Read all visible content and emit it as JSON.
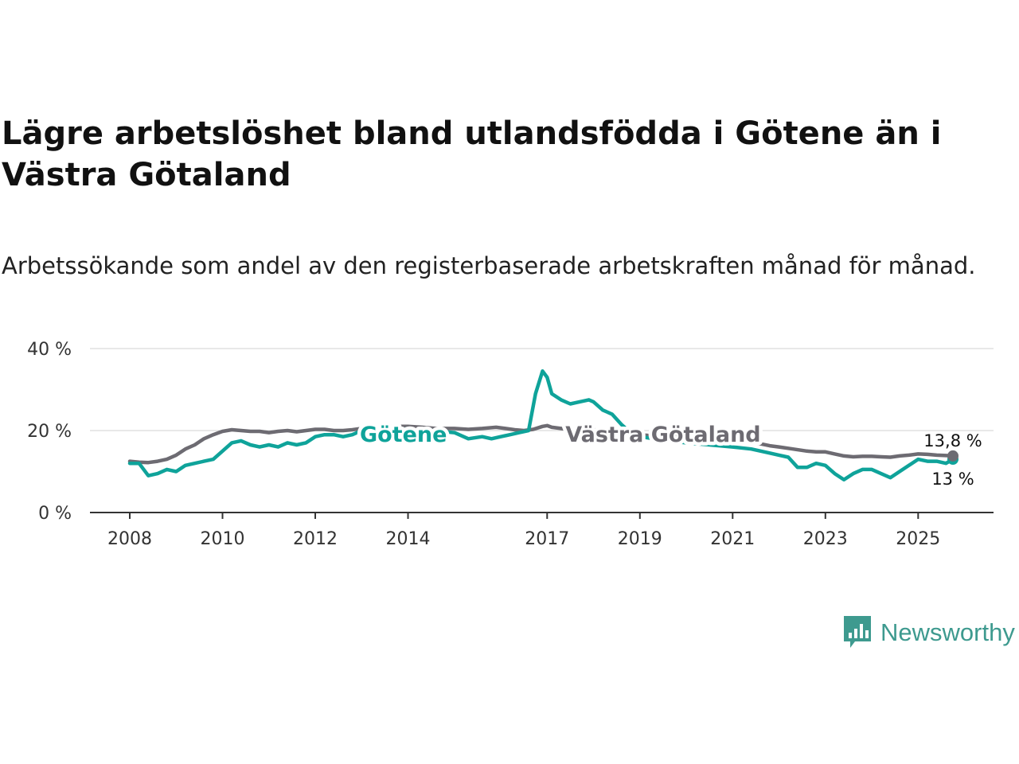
{
  "title": "Lägre arbetslöshet bland utlandsfödda i Götene än i Västra Götaland",
  "subtitle": "Arbetssökande som andel av den registerbaserade arbetskraften månad för månad.",
  "brand": {
    "name": "Newsworthy",
    "icon": "newsworthy-logo-icon",
    "color": "#3e9a8f"
  },
  "chart_data": {
    "type": "line",
    "title": "Lägre arbetslöshet bland utlandsfödda i Götene än i Västra Götaland",
    "xlabel": "",
    "ylabel": "",
    "xlim": [
      2008,
      2025.75
    ],
    "ylim": [
      0,
      40
    ],
    "grid": true,
    "x_ticks": [
      {
        "value": 2008,
        "label": "2008"
      },
      {
        "value": 2010,
        "label": "2010"
      },
      {
        "value": 2012,
        "label": "2012"
      },
      {
        "value": 2014,
        "label": "2014"
      },
      {
        "value": 2017,
        "label": "2017"
      },
      {
        "value": 2019,
        "label": "2019"
      },
      {
        "value": 2021,
        "label": "2021"
      },
      {
        "value": 2023,
        "label": "2023"
      },
      {
        "value": 2025,
        "label": "2025"
      }
    ],
    "y_ticks": [
      {
        "value": 0,
        "label": "0 %"
      },
      {
        "value": 20,
        "label": "20 %"
      },
      {
        "value": 40,
        "label": "40 %"
      }
    ],
    "series": [
      {
        "name": "Götene",
        "color": "#0fa39a",
        "end_label": "13 %",
        "points": [
          [
            2008.0,
            12.0
          ],
          [
            2008.2,
            12.0
          ],
          [
            2008.4,
            9.0
          ],
          [
            2008.6,
            9.5
          ],
          [
            2008.8,
            10.5
          ],
          [
            2009.0,
            10.0
          ],
          [
            2009.2,
            11.5
          ],
          [
            2009.4,
            12.0
          ],
          [
            2009.6,
            12.5
          ],
          [
            2009.8,
            13.0
          ],
          [
            2010.0,
            15.0
          ],
          [
            2010.2,
            17.0
          ],
          [
            2010.4,
            17.5
          ],
          [
            2010.6,
            16.5
          ],
          [
            2010.8,
            16.0
          ],
          [
            2011.0,
            16.5
          ],
          [
            2011.2,
            16.0
          ],
          [
            2011.4,
            17.0
          ],
          [
            2011.6,
            16.5
          ],
          [
            2011.8,
            17.0
          ],
          [
            2012.0,
            18.5
          ],
          [
            2012.2,
            19.0
          ],
          [
            2012.4,
            19.0
          ],
          [
            2012.6,
            18.5
          ],
          [
            2012.8,
            19.0
          ],
          [
            2013.0,
            20.0
          ],
          [
            2013.2,
            20.5
          ],
          [
            2013.4,
            20.5
          ],
          [
            2013.6,
            20.0
          ],
          [
            2013.8,
            20.0
          ],
          [
            2014.0,
            20.5
          ],
          [
            2014.2,
            20.0
          ],
          [
            2014.5,
            20.0
          ],
          [
            2015.0,
            19.5
          ],
          [
            2015.3,
            18.0
          ],
          [
            2015.6,
            18.5
          ],
          [
            2015.8,
            18.0
          ],
          [
            2016.0,
            18.5
          ],
          [
            2016.2,
            19.0
          ],
          [
            2016.4,
            19.5
          ],
          [
            2016.6,
            20.0
          ],
          [
            2016.75,
            29.0
          ],
          [
            2016.9,
            34.5
          ],
          [
            2017.0,
            33.0
          ],
          [
            2017.1,
            29.0
          ],
          [
            2017.3,
            27.5
          ],
          [
            2017.5,
            26.5
          ],
          [
            2017.7,
            27.0
          ],
          [
            2017.9,
            27.5
          ],
          [
            2018.0,
            27.0
          ],
          [
            2018.2,
            25.0
          ],
          [
            2018.4,
            24.0
          ],
          [
            2018.6,
            21.5
          ],
          [
            2018.8,
            19.5
          ],
          [
            2019.0,
            18.5
          ],
          [
            2019.3,
            18.0
          ],
          [
            2019.6,
            17.5
          ],
          [
            2020.0,
            17.0
          ],
          [
            2020.5,
            16.5
          ],
          [
            2021.0,
            16.0
          ],
          [
            2021.4,
            15.5
          ],
          [
            2021.8,
            14.5
          ],
          [
            2022.0,
            14.0
          ],
          [
            2022.2,
            13.5
          ],
          [
            2022.4,
            11.0
          ],
          [
            2022.6,
            11.0
          ],
          [
            2022.8,
            12.0
          ],
          [
            2023.0,
            11.5
          ],
          [
            2023.2,
            9.5
          ],
          [
            2023.4,
            8.0
          ],
          [
            2023.6,
            9.5
          ],
          [
            2023.8,
            10.5
          ],
          [
            2024.0,
            10.5
          ],
          [
            2024.2,
            9.5
          ],
          [
            2024.4,
            8.5
          ],
          [
            2024.6,
            10.0
          ],
          [
            2024.8,
            11.5
          ],
          [
            2025.0,
            13.0
          ],
          [
            2025.2,
            12.5
          ],
          [
            2025.4,
            12.5
          ],
          [
            2025.6,
            12.0
          ],
          [
            2025.75,
            13.0
          ]
        ]
      },
      {
        "name": "Västra Götaland",
        "color": "#6d6b72",
        "end_label": "13,8 %",
        "points": [
          [
            2008.0,
            12.5
          ],
          [
            2008.2,
            12.3
          ],
          [
            2008.4,
            12.2
          ],
          [
            2008.6,
            12.5
          ],
          [
            2008.8,
            13.0
          ],
          [
            2009.0,
            14.0
          ],
          [
            2009.2,
            15.5
          ],
          [
            2009.4,
            16.5
          ],
          [
            2009.6,
            18.0
          ],
          [
            2009.8,
            19.0
          ],
          [
            2010.0,
            19.8
          ],
          [
            2010.2,
            20.2
          ],
          [
            2010.4,
            20.0
          ],
          [
            2010.6,
            19.8
          ],
          [
            2010.8,
            19.8
          ],
          [
            2011.0,
            19.5
          ],
          [
            2011.2,
            19.8
          ],
          [
            2011.4,
            20.0
          ],
          [
            2011.6,
            19.7
          ],
          [
            2011.8,
            20.0
          ],
          [
            2012.0,
            20.3
          ],
          [
            2012.2,
            20.3
          ],
          [
            2012.4,
            20.0
          ],
          [
            2012.6,
            20.0
          ],
          [
            2012.8,
            20.2
          ],
          [
            2013.0,
            20.5
          ],
          [
            2013.2,
            20.8
          ],
          [
            2013.4,
            20.8
          ],
          [
            2013.6,
            21.0
          ],
          [
            2013.8,
            21.0
          ],
          [
            2014.0,
            21.0
          ],
          [
            2014.3,
            20.8
          ],
          [
            2014.6,
            20.5
          ],
          [
            2015.0,
            20.5
          ],
          [
            2015.3,
            20.3
          ],
          [
            2015.6,
            20.5
          ],
          [
            2015.9,
            20.8
          ],
          [
            2016.1,
            20.5
          ],
          [
            2016.3,
            20.2
          ],
          [
            2016.5,
            20.0
          ],
          [
            2016.7,
            20.3
          ],
          [
            2016.9,
            21.0
          ],
          [
            2017.0,
            21.2
          ],
          [
            2017.1,
            20.8
          ],
          [
            2017.3,
            20.5
          ],
          [
            2017.5,
            20.2
          ],
          [
            2017.7,
            20.5
          ],
          [
            2017.9,
            20.3
          ],
          [
            2018.2,
            20.0
          ],
          [
            2018.6,
            19.5
          ],
          [
            2019.0,
            19.0
          ],
          [
            2019.5,
            18.5
          ],
          [
            2020.0,
            18.5
          ],
          [
            2020.5,
            18.0
          ],
          [
            2021.0,
            17.5
          ],
          [
            2021.5,
            17.0
          ],
          [
            2021.8,
            16.3
          ],
          [
            2022.0,
            16.0
          ],
          [
            2022.3,
            15.5
          ],
          [
            2022.6,
            15.0
          ],
          [
            2022.8,
            14.8
          ],
          [
            2023.0,
            14.8
          ],
          [
            2023.2,
            14.3
          ],
          [
            2023.4,
            13.8
          ],
          [
            2023.6,
            13.6
          ],
          [
            2023.8,
            13.7
          ],
          [
            2024.0,
            13.7
          ],
          [
            2024.2,
            13.6
          ],
          [
            2024.4,
            13.5
          ],
          [
            2024.6,
            13.8
          ],
          [
            2024.8,
            14.0
          ],
          [
            2025.0,
            14.3
          ],
          [
            2025.2,
            14.2
          ],
          [
            2025.4,
            14.0
          ],
          [
            2025.6,
            13.9
          ],
          [
            2025.75,
            13.8
          ]
        ]
      }
    ],
    "annotations": [
      {
        "series": "Götene",
        "text": "Götene",
        "x": 2013.9,
        "y": 19.0
      },
      {
        "series": "Västra Götaland",
        "text": "Västra Götaland",
        "x": 2019.5,
        "y": 19.0
      }
    ]
  }
}
